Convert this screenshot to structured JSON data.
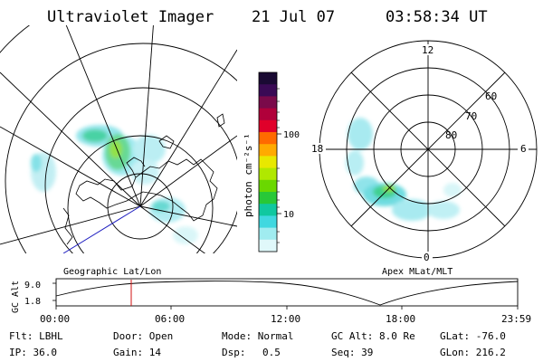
{
  "header": {
    "instrument": "Ultraviolet Imager",
    "date": "21 Jul 07",
    "time": "03:58:34 UT"
  },
  "colorbar": {
    "unit_label": "photon cm⁻²s⁻¹",
    "ticks": [
      "100",
      "10"
    ],
    "colors": [
      "#1a0a33",
      "#3a0a55",
      "#7a0a4a",
      "#b0003a",
      "#e0002a",
      "#ff6a00",
      "#ffaa00",
      "#e8e800",
      "#b0e800",
      "#6ad800",
      "#28c838",
      "#10c8a0",
      "#40d8e0",
      "#a0ecf0",
      "#e0f8fa"
    ]
  },
  "left_map": {
    "label": "Geographic Lat/Lon"
  },
  "right_map": {
    "label": "Apex MLat/MLT",
    "clock_labels": {
      "top": "12",
      "left": "18",
      "right": "6",
      "bottom": "0"
    },
    "lat_labels": [
      "60",
      "70",
      "80"
    ]
  },
  "altitude_plot": {
    "ylabel": "GC Alt",
    "yticks": [
      "9.0",
      "1.8"
    ],
    "xticks": [
      "00:00",
      "06:00",
      "12:00",
      "18:00",
      "23:59"
    ],
    "marker_time": "03:58"
  },
  "footer": {
    "row1": {
      "filter": "Flt: LBHL",
      "door": "Door: Open",
      "mode": "Mode: Normal",
      "gc_alt": "GC Alt: 8.0 Re",
      "glat": "GLat: -76.0"
    },
    "row2": {
      "ip": "IP: 36.0",
      "gain": "Gain: 14",
      "dsp_label": "Dsp:",
      "dsp_value": "0.5",
      "seq": "Seq: 39",
      "glon": "GLon: 216.2"
    }
  }
}
